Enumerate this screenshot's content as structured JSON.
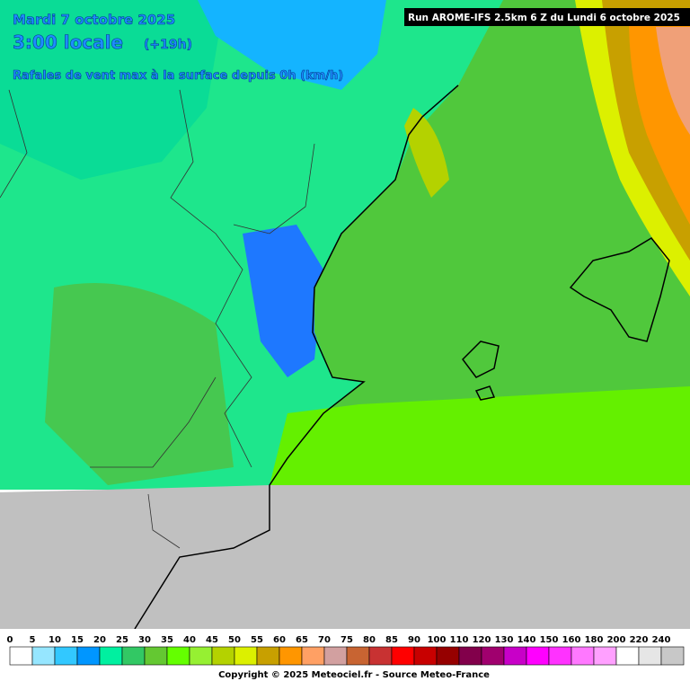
{
  "header": {
    "date": "Mardi 7 octobre 2025",
    "time": "3:00 locale",
    "offset": "(+19h)",
    "subtitle": "Rafales de vent max à la surface depuis 0h (km/h)",
    "run": "Run AROME-IFS 2.5km 6 Z du Lundi 6 octobre 2025"
  },
  "legend": {
    "labels": [
      0,
      5,
      10,
      15,
      20,
      25,
      30,
      35,
      40,
      45,
      50,
      55,
      60,
      65,
      70,
      75,
      80,
      85,
      90,
      100,
      110,
      120,
      130,
      140,
      150,
      160,
      180,
      200,
      220,
      240
    ],
    "colors": [
      "#ffffff",
      "#96e6ff",
      "#32c8ff",
      "#0096ff",
      "#00f0a0",
      "#32c864",
      "#64c832",
      "#64ff00",
      "#96f032",
      "#b4d200",
      "#dcf000",
      "#c8a000",
      "#ff9600",
      "#ffa064",
      "#d2a0a0",
      "#c86432",
      "#c83232",
      "#ff0000",
      "#c80000",
      "#960000",
      "#82004b",
      "#a0006e",
      "#c800c8",
      "#ff00ff",
      "#ff32ff",
      "#ff78ff",
      "#ffa0ff",
      "#ffffff",
      "#e6e6e6",
      "#c8c8c8"
    ]
  },
  "footer": {
    "copyright": "Copyright © 2025 Meteociel.fr - Source Meteo-France"
  }
}
